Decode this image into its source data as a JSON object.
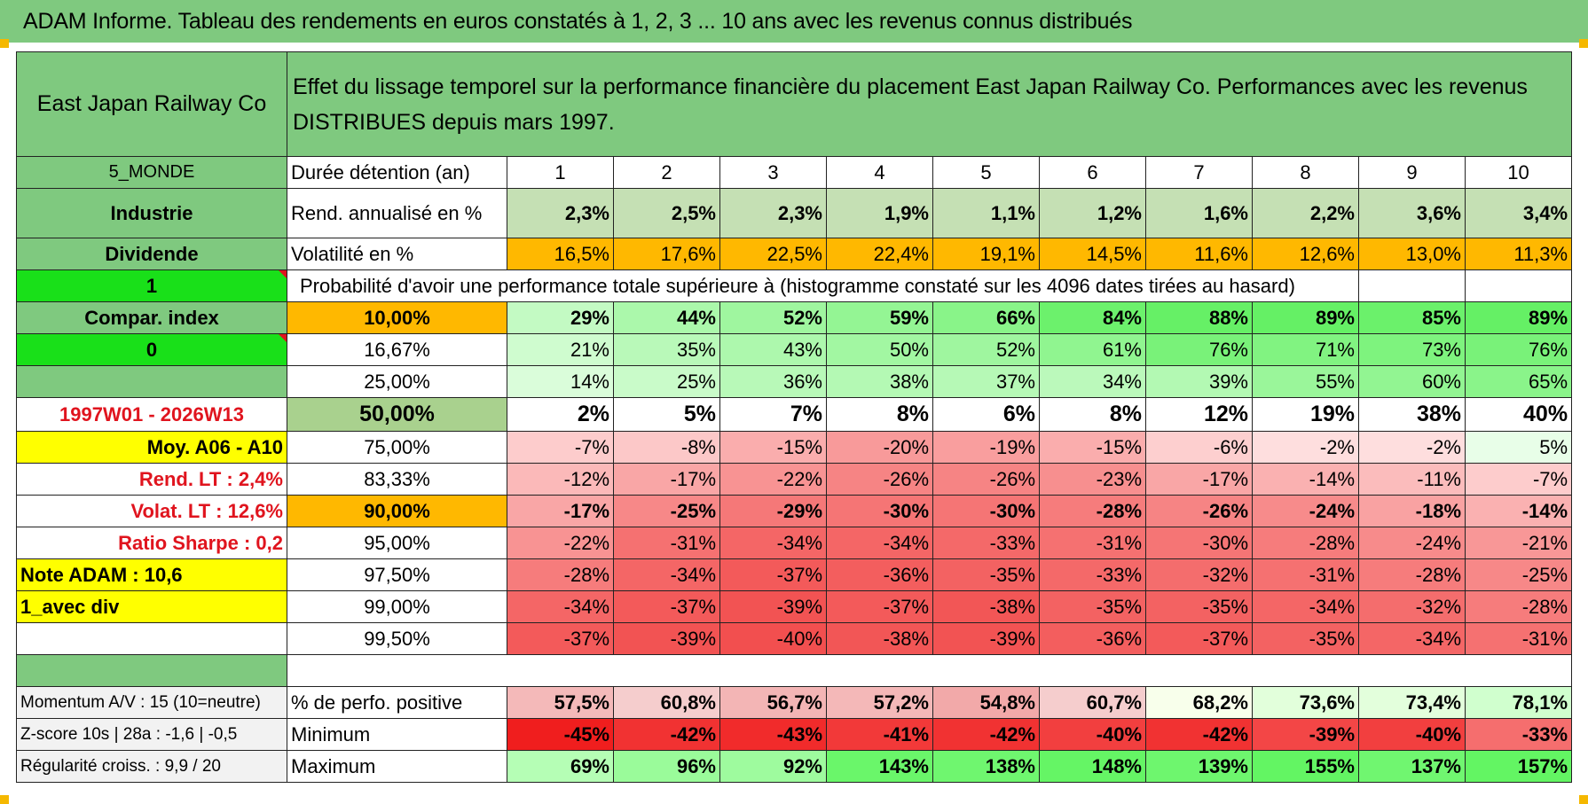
{
  "title": "ADAM Informe. Tableau des rendements en euros constatés à 1, 2, 3 ... 10 ans avec les revenus connus distribués",
  "header": {
    "company": "East Japan Railway Co",
    "description": "Effet du lissage temporel sur la performance financière du placement East Japan Railway Co. Performances avec les revenus DISTRIBUES depuis mars 1997."
  },
  "side": {
    "zone": "5_MONDE",
    "sector": "Industrie",
    "type": "Dividende",
    "flag1": "1",
    "compar": "Compar. index",
    "flag0": "0",
    "blank": "",
    "period": "1997W01 - 2026W13",
    "moy": "Moy. A06 - A10",
    "rend_lt": "Rend. LT :   2,4%",
    "volat_lt": "Volat. LT :   12,6%",
    "sharpe": "Ratio Sharpe :    0,2",
    "note": "Note ADAM : 10,6",
    "div": "1_avec div",
    "momentum": "Momentum A/V : 15 (10=neutre)",
    "zscore": "Z-score 10s | 28a : -1,6 | -0,5",
    "regularite": "Régularité croiss. : 9,9 / 20"
  },
  "labels": {
    "duree": "Durée détention (an)",
    "rend": "Rend. annualisé en %",
    "vol": "Volatilité en %",
    "proba": "Probabilité d'avoir une performance totale supérieure à (histogramme constaté sur les 4096 dates tirées au hasard)",
    "positive": "% de perfo. positive",
    "minimum": "Minimum",
    "maximum": "Maximum"
  },
  "years": [
    "1",
    "2",
    "3",
    "4",
    "5",
    "6",
    "7",
    "8",
    "9",
    "10"
  ],
  "rend": [
    "2,3%",
    "2,5%",
    "2,3%",
    "1,9%",
    "1,1%",
    "1,2%",
    "1,6%",
    "2,2%",
    "3,6%",
    "3,4%"
  ],
  "vol": [
    "16,5%",
    "17,6%",
    "22,5%",
    "22,4%",
    "19,1%",
    "14,5%",
    "11,6%",
    "12,6%",
    "13,0%",
    "11,3%"
  ],
  "quantiles": [
    {
      "p": "10,00%",
      "v": [
        "29%",
        "44%",
        "52%",
        "59%",
        "66%",
        "84%",
        "88%",
        "89%",
        "85%",
        "89%"
      ]
    },
    {
      "p": "16,67%",
      "v": [
        "21%",
        "35%",
        "43%",
        "50%",
        "52%",
        "61%",
        "76%",
        "71%",
        "73%",
        "76%"
      ]
    },
    {
      "p": "25,00%",
      "v": [
        "14%",
        "25%",
        "36%",
        "38%",
        "37%",
        "34%",
        "39%",
        "55%",
        "60%",
        "65%"
      ]
    },
    {
      "p": "50,00%",
      "v": [
        "2%",
        "5%",
        "7%",
        "8%",
        "6%",
        "8%",
        "12%",
        "19%",
        "38%",
        "40%"
      ]
    },
    {
      "p": "75,00%",
      "v": [
        "-7%",
        "-8%",
        "-15%",
        "-20%",
        "-19%",
        "-15%",
        "-6%",
        "-2%",
        "-2%",
        "5%"
      ]
    },
    {
      "p": "83,33%",
      "v": [
        "-12%",
        "-17%",
        "-22%",
        "-26%",
        "-26%",
        "-23%",
        "-17%",
        "-14%",
        "-11%",
        "-7%"
      ]
    },
    {
      "p": "90,00%",
      "v": [
        "-17%",
        "-25%",
        "-29%",
        "-30%",
        "-30%",
        "-28%",
        "-26%",
        "-24%",
        "-18%",
        "-14%"
      ]
    },
    {
      "p": "95,00%",
      "v": [
        "-22%",
        "-31%",
        "-34%",
        "-34%",
        "-33%",
        "-31%",
        "-30%",
        "-28%",
        "-24%",
        "-21%"
      ]
    },
    {
      "p": "97,50%",
      "v": [
        "-28%",
        "-34%",
        "-37%",
        "-36%",
        "-35%",
        "-33%",
        "-32%",
        "-31%",
        "-28%",
        "-25%"
      ]
    },
    {
      "p": "99,00%",
      "v": [
        "-34%",
        "-37%",
        "-39%",
        "-37%",
        "-38%",
        "-35%",
        "-35%",
        "-34%",
        "-32%",
        "-28%"
      ]
    },
    {
      "p": "99,50%",
      "v": [
        "-37%",
        "-39%",
        "-40%",
        "-38%",
        "-39%",
        "-36%",
        "-37%",
        "-35%",
        "-34%",
        "-31%"
      ]
    }
  ],
  "positive": [
    "57,5%",
    "60,8%",
    "56,7%",
    "57,2%",
    "54,8%",
    "60,7%",
    "68,2%",
    "73,6%",
    "73,4%",
    "78,1%"
  ],
  "minimum": [
    "-45%",
    "-42%",
    "-43%",
    "-41%",
    "-42%",
    "-40%",
    "-42%",
    "-39%",
    "-40%",
    "-33%"
  ],
  "maximum": [
    "69%",
    "96%",
    "92%",
    "143%",
    "138%",
    "148%",
    "139%",
    "155%",
    "137%",
    "157%"
  ],
  "colors": {
    "header_green": "#7fc97f",
    "bright_green": "#19e019",
    "orange": "#ffb800",
    "yellow": "#ffff00",
    "red_text": "#e0141e"
  }
}
